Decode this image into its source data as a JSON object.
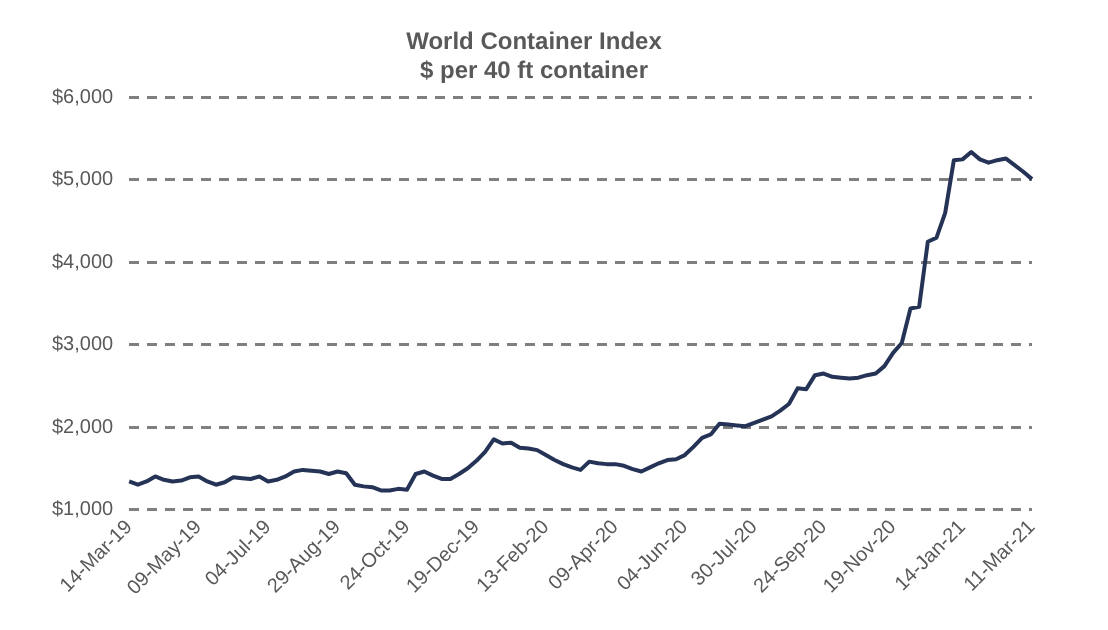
{
  "chart_data": {
    "type": "line",
    "title": "World Container Index",
    "subtitle": "$ per 40 ft container",
    "categories": [
      "14-Mar-19",
      null,
      null,
      null,
      null,
      null,
      null,
      null,
      "09-May-19",
      null,
      null,
      null,
      null,
      null,
      null,
      null,
      "04-Jul-19",
      null,
      null,
      null,
      null,
      null,
      null,
      null,
      "29-Aug-19",
      null,
      null,
      null,
      null,
      null,
      null,
      null,
      "24-Oct-19",
      null,
      null,
      null,
      null,
      null,
      null,
      null,
      "19-Dec-19",
      null,
      null,
      null,
      null,
      null,
      null,
      null,
      "13-Feb-20",
      null,
      null,
      null,
      null,
      null,
      null,
      null,
      "09-Apr-20",
      null,
      null,
      null,
      null,
      null,
      null,
      null,
      "04-Jun-20",
      null,
      null,
      null,
      null,
      null,
      null,
      null,
      "30-Jul-20",
      null,
      null,
      null,
      null,
      null,
      null,
      null,
      "24-Sep-20",
      null,
      null,
      null,
      null,
      null,
      null,
      null,
      "19-Nov-20",
      null,
      null,
      null,
      null,
      null,
      null,
      null,
      "14-Jan-21",
      null,
      null,
      null,
      null,
      null,
      null,
      null,
      "11-Mar-21"
    ],
    "series": [
      {
        "color": "#253356",
        "values": [
          1340,
          1300,
          1340,
          1400,
          1360,
          1340,
          1350,
          1390,
          1400,
          1340,
          1300,
          1330,
          1390,
          1380,
          1370,
          1400,
          1340,
          1360,
          1400,
          1460,
          1480,
          1470,
          1460,
          1430,
          1460,
          1440,
          1300,
          1280,
          1270,
          1230,
          1230,
          1250,
          1240,
          1430,
          1460,
          1410,
          1370,
          1370,
          1430,
          1500,
          1590,
          1700,
          1850,
          1800,
          1810,
          1750,
          1740,
          1720,
          1660,
          1600,
          1550,
          1510,
          1480,
          1580,
          1560,
          1550,
          1550,
          1530,
          1490,
          1460,
          1510,
          1560,
          1600,
          1610,
          1660,
          1760,
          1870,
          1910,
          2040,
          2030,
          2020,
          2010,
          2050,
          2090,
          2130,
          2200,
          2280,
          2470,
          2460,
          2630,
          2650,
          2610,
          2600,
          2590,
          2600,
          2630,
          2650,
          2740,
          2900,
          3020,
          3440,
          3460,
          4250,
          4300,
          4600,
          5240,
          5250,
          5340,
          5250,
          5210,
          5240,
          5260,
          5180,
          5100,
          5010
        ]
      }
    ],
    "ylim": [
      1000,
      6000
    ],
    "yticks": [
      {
        "value": 1000,
        "label": "$1,000"
      },
      {
        "value": 2000,
        "label": "$2,000"
      },
      {
        "value": 3000,
        "label": "$3,000"
      },
      {
        "value": 4000,
        "label": "$4,000"
      },
      {
        "value": 5000,
        "label": "$5,000"
      },
      {
        "value": 6000,
        "label": "$6,000"
      }
    ],
    "grid": "y",
    "legend": false,
    "marker": "none",
    "line_style": "solid"
  }
}
